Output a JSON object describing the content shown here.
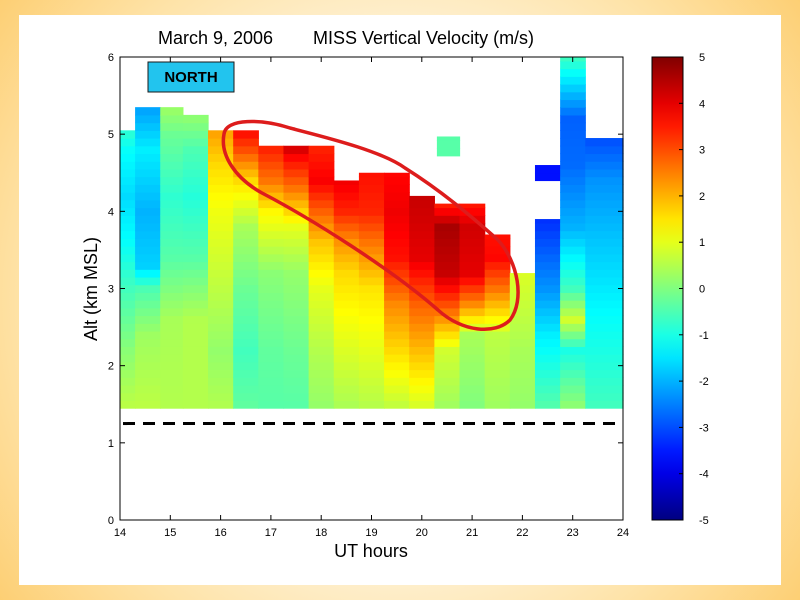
{
  "slide": {
    "background_colors": [
      "#ffffff",
      "#fdcf74"
    ]
  },
  "chart_data": {
    "type": "heatmap",
    "title": "March 9, 2006",
    "subtitle": "MISS Vertical Velocity (m/s)",
    "xlabel": "UT hours",
    "ylabel": "Alt (km MSL)",
    "xlim": [
      14,
      24
    ],
    "ylim": [
      0,
      6
    ],
    "x_ticks": [
      "14",
      "15",
      "16",
      "17",
      "18",
      "19",
      "20",
      "21",
      "22",
      "23",
      "24"
    ],
    "y_ticks": [
      "0",
      "1",
      "2",
      "3",
      "4",
      "5",
      "6"
    ],
    "colorbar": {
      "min": -5,
      "max": 5,
      "ticks": [
        "5",
        "4",
        "3",
        "2",
        "1",
        "0",
        "-1",
        "-2",
        "-3",
        "-4",
        "-5"
      ],
      "colormap": "jet"
    },
    "annotation_label": "NORTH",
    "annotation_label_color": "#22c4ee",
    "highlight_outline_color": "#dd1c1c",
    "reference_line_altitude_km": 1.25,
    "reference_line_style": "dashed",
    "columns": [
      {
        "x0": 14.0,
        "x1": 14.3,
        "bottom": 1.45,
        "top": 5.05,
        "profile": [
          [
            1.45,
            0.6
          ],
          [
            2.2,
            0.1
          ],
          [
            3.0,
            -0.6
          ],
          [
            3.6,
            -1.2
          ],
          [
            4.2,
            -1.6
          ],
          [
            4.8,
            -1.2
          ],
          [
            5.05,
            -0.8
          ]
        ]
      },
      {
        "x0": 14.3,
        "x1": 14.8,
        "bottom": 1.45,
        "top": 5.35,
        "profile": [
          [
            1.45,
            0.6
          ],
          [
            2.4,
            0.3
          ],
          [
            3.0,
            -0.5
          ],
          [
            3.3,
            -1.7
          ],
          [
            4.0,
            -2.0
          ],
          [
            4.8,
            -1.4
          ],
          [
            5.35,
            -2.2
          ]
        ]
      },
      {
        "x0": 14.8,
        "x1": 15.25,
        "bottom": 1.45,
        "top": 5.35,
        "profile": [
          [
            1.45,
            0.5
          ],
          [
            2.6,
            0.4
          ],
          [
            3.4,
            -0.4
          ],
          [
            4.2,
            -0.8
          ],
          [
            5.0,
            -0.2
          ],
          [
            5.35,
            0.3
          ]
        ]
      },
      {
        "x0": 15.25,
        "x1": 15.75,
        "bottom": 1.45,
        "top": 5.25,
        "profile": [
          [
            1.45,
            0.5
          ],
          [
            2.6,
            0.5
          ],
          [
            3.4,
            -0.4
          ],
          [
            4.2,
            -0.9
          ],
          [
            4.8,
            -0.5
          ],
          [
            5.25,
            0.2
          ]
        ]
      },
      {
        "x0": 15.75,
        "x1": 16.25,
        "bottom": 1.45,
        "top": 5.05,
        "profile": [
          [
            1.45,
            0.5
          ],
          [
            2.2,
            0.2
          ],
          [
            3.0,
            0.6
          ],
          [
            4.0,
            1.1
          ],
          [
            4.6,
            1.6
          ],
          [
            5.05,
            2.2
          ]
        ]
      },
      {
        "x0": 16.25,
        "x1": 16.75,
        "bottom": 1.45,
        "top": 5.05,
        "profile": [
          [
            1.45,
            -0.3
          ],
          [
            2.2,
            -0.6
          ],
          [
            3.0,
            -0.2
          ],
          [
            3.8,
            0.4
          ],
          [
            4.4,
            1.6
          ],
          [
            4.8,
            3.0
          ],
          [
            5.05,
            3.7
          ]
        ]
      },
      {
        "x0": 16.75,
        "x1": 17.25,
        "bottom": 1.45,
        "top": 4.85,
        "profile": [
          [
            1.45,
            -0.4
          ],
          [
            2.2,
            -0.3
          ],
          [
            3.2,
            0.1
          ],
          [
            4.0,
            1.3
          ],
          [
            4.4,
            2.6
          ],
          [
            4.85,
            3.5
          ]
        ]
      },
      {
        "x0": 17.25,
        "x1": 17.75,
        "bottom": 1.45,
        "top": 4.85,
        "profile": [
          [
            1.45,
            -0.4
          ],
          [
            2.2,
            -0.2
          ],
          [
            3.2,
            0.2
          ],
          [
            3.8,
            1.0
          ],
          [
            4.3,
            2.6
          ],
          [
            4.7,
            3.7
          ],
          [
            4.85,
            4.3
          ]
        ]
      },
      {
        "x0": 17.75,
        "x1": 18.25,
        "bottom": 1.45,
        "top": 4.85,
        "profile": [
          [
            1.45,
            0.2
          ],
          [
            2.2,
            0.5
          ],
          [
            3.0,
            1.0
          ],
          [
            3.6,
            1.8
          ],
          [
            4.0,
            2.8
          ],
          [
            4.4,
            3.8
          ],
          [
            4.85,
            3.4
          ]
        ]
      },
      {
        "x0": 18.25,
        "x1": 18.75,
        "bottom": 1.45,
        "top": 4.4,
        "profile": [
          [
            1.45,
            0.4
          ],
          [
            2.2,
            0.9
          ],
          [
            3.2,
            1.6
          ],
          [
            3.6,
            2.3
          ],
          [
            4.0,
            3.4
          ],
          [
            4.4,
            3.9
          ]
        ]
      },
      {
        "x0": 18.75,
        "x1": 19.25,
        "bottom": 1.45,
        "top": 4.5,
        "profile": [
          [
            1.45,
            0.5
          ],
          [
            2.2,
            1.0
          ],
          [
            3.0,
            1.5
          ],
          [
            3.6,
            2.6
          ],
          [
            4.0,
            3.4
          ],
          [
            4.5,
            3.6
          ]
        ]
      },
      {
        "x0": 19.25,
        "x1": 19.75,
        "bottom": 1.45,
        "top": 4.5,
        "profile": [
          [
            1.45,
            0.6
          ],
          [
            2.2,
            1.6
          ],
          [
            2.8,
            2.4
          ],
          [
            3.4,
            3.6
          ],
          [
            4.0,
            3.9
          ],
          [
            4.5,
            3.7
          ]
        ]
      },
      {
        "x0": 19.75,
        "x1": 20.25,
        "bottom": 1.45,
        "top": 4.2,
        "profile": [
          [
            1.45,
            0.8
          ],
          [
            2.0,
            1.6
          ],
          [
            2.8,
            2.8
          ],
          [
            3.4,
            4.0
          ],
          [
            4.2,
            4.3
          ]
        ]
      },
      {
        "x0": 20.25,
        "x1": 20.75,
        "bottom": 1.45,
        "top": 4.1,
        "profile": [
          [
            1.45,
            0.3
          ],
          [
            2.2,
            0.8
          ],
          [
            2.8,
            3.0
          ],
          [
            3.2,
            4.3
          ],
          [
            3.8,
            4.6
          ],
          [
            4.1,
            3.4
          ]
        ]
      },
      {
        "x0": 20.75,
        "x1": 21.25,
        "bottom": 1.45,
        "top": 4.1,
        "profile": [
          [
            1.45,
            0.0
          ],
          [
            2.4,
            0.4
          ],
          [
            2.8,
            2.4
          ],
          [
            3.2,
            4.0
          ],
          [
            3.8,
            4.2
          ],
          [
            4.1,
            3.5
          ]
        ]
      },
      {
        "x0": 21.25,
        "x1": 21.75,
        "bottom": 1.45,
        "top": 3.7,
        "profile": [
          [
            1.45,
            0.3
          ],
          [
            2.4,
            0.6
          ],
          [
            3.0,
            2.6
          ],
          [
            3.4,
            3.7
          ],
          [
            3.7,
            3.6
          ]
        ]
      },
      {
        "x0": 21.75,
        "x1": 22.25,
        "bottom": 1.45,
        "top": 3.2,
        "profile": [
          [
            1.45,
            0.2
          ],
          [
            2.2,
            0.4
          ],
          [
            3.2,
            0.9
          ]
        ]
      },
      {
        "x0": 22.25,
        "x1": 22.75,
        "bottom": 1.45,
        "top": 3.9,
        "profile": [
          [
            1.45,
            -0.4
          ],
          [
            2.4,
            -1.4
          ],
          [
            3.0,
            -2.3
          ],
          [
            3.9,
            -3.3
          ]
        ]
      },
      {
        "x0": 22.25,
        "x1": 22.75,
        "bottom": 4.4,
        "top": 4.6,
        "profile": [
          [
            4.4,
            -3.6
          ],
          [
            4.6,
            -3.6
          ]
        ]
      },
      {
        "x0": 22.75,
        "x1": 23.25,
        "bottom": 1.45,
        "top": 6.0,
        "profile": [
          [
            1.45,
            0.2
          ],
          [
            2.2,
            -1.0
          ],
          [
            2.6,
            0.8
          ],
          [
            3.0,
            -0.6
          ],
          [
            3.8,
            -2.0
          ],
          [
            4.6,
            -2.7
          ],
          [
            5.2,
            -2.8
          ],
          [
            5.8,
            -1.2
          ],
          [
            6.0,
            -0.6
          ]
        ]
      },
      {
        "x0": 23.25,
        "x1": 24.0,
        "bottom": 1.45,
        "top": 4.95,
        "profile": [
          [
            1.45,
            -0.6
          ],
          [
            2.6,
            -1.2
          ],
          [
            3.6,
            -1.8
          ],
          [
            4.4,
            -2.3
          ],
          [
            4.95,
            -3.0
          ]
        ]
      },
      {
        "x0": 20.3,
        "x1": 20.75,
        "bottom": 4.72,
        "top": 4.97,
        "profile": [
          [
            4.72,
            -0.4
          ],
          [
            4.97,
            -0.4
          ]
        ]
      }
    ]
  }
}
